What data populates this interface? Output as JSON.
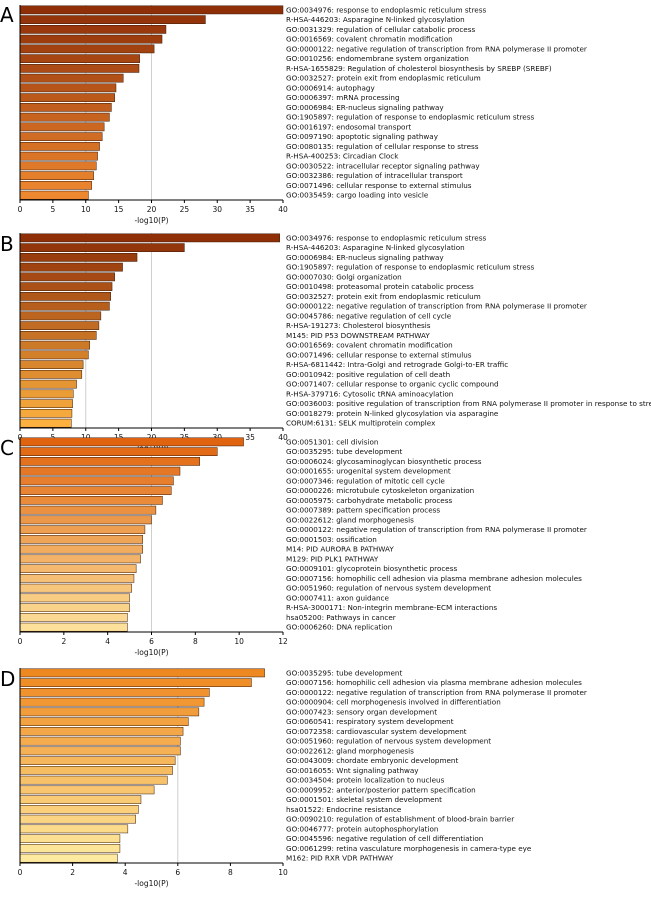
{
  "chart_data": [
    {
      "type": "bar",
      "panel_label": "A",
      "xlabel": "-log10(P)",
      "xlim": [
        0,
        40
      ],
      "xticks": [
        0,
        5,
        10,
        15,
        20,
        25,
        30,
        35,
        40
      ],
      "gridlines": [
        10,
        20
      ],
      "categories": [
        "GO:0034976: response to endoplasmic reticulum stress",
        "R-HSA-446203: Asparagine N-linked glycosylation",
        "GO:0031329: regulation of cellular catabolic process",
        "GO:0016569: covalent chromatin modification",
        "GO:0000122: negative regulation of transcription from RNA polymerase II promoter",
        "GO:0010256: endomembrane system organization",
        "R-HSA-1655829: Regulation of cholesterol biosynthesis by SREBP (SREBF)",
        "GO:0032527: protein exit from endoplasmic reticulum",
        "GO:0006914: autophagy",
        "GO:0006397: mRNA processing",
        "GO:0006984: ER-nucleus signaling pathway",
        "GO:1905897: regulation of response to endoplasmic reticulum stress",
        "GO:0016197: endosomal transport",
        "GO:0097190: apoptotic signaling pathway",
        "GO:0080135: regulation of cellular response to stress",
        "R-HSA-400253: Circadian Clock",
        "GO:0030522: intracellular receptor signaling pathway",
        "GO:0032386: regulation of intracellular transport",
        "GO:0071496: cellular response to external stimulus",
        "GO:0035459: cargo loading into vesicle"
      ],
      "values": [
        40.0,
        28.2,
        22.2,
        21.6,
        20.4,
        18.2,
        18.1,
        15.7,
        14.6,
        14.4,
        13.9,
        13.6,
        12.8,
        12.5,
        12.1,
        11.8,
        11.6,
        11.2,
        10.9,
        10.4
      ]
    },
    {
      "type": "bar",
      "panel_label": "B",
      "xlabel": "-log10(P)",
      "xlim": [
        0,
        40
      ],
      "xticks": [
        0,
        5,
        10,
        15,
        20,
        25,
        30,
        35,
        40
      ],
      "gridlines": [
        10,
        20
      ],
      "categories": [
        "GO:0034976: response to endoplasmic reticulum stress",
        "R-HSA-446203: Asparagine N-linked glycosylation",
        "GO:0006984: ER-nucleus signaling pathway",
        "GO:1905897: regulation of response to endoplasmic reticulum stress",
        "GO:0007030: Golgi organization",
        "GO:0010498: proteasomal protein catabolic process",
        "GO:0032527: protein exit from endoplasmic reticulum",
        "GO:0000122: negative regulation of transcription from RNA polymerase II promoter",
        "GO:0045786: negative regulation of cell cycle",
        "R-HSA-191273: Cholesterol biosynthesis",
        "M145: PID P53 DOWNSTREAM PATHWAY",
        "GO:0016569: covalent chromatin modification",
        "GO:0071496: cellular response to external stimulus",
        "R-HSA-6811442: Intra-Golgi and retrograde Golgi-to-ER traffic",
        "GO:0010942: positive regulation of cell death",
        "GO:0071407: cellular response to organic cyclic compound",
        "R-HSA-379716: Cytosolic tRNA aminoacylation",
        "GO:0036003: positive regulation of transcription from RNA polymerase II promoter in response to stress",
        "GO:0018279: protein N-linked glycosylation via asparagine",
        "CORUM:6131: SELK multiprotein complex"
      ],
      "values": [
        39.5,
        25.0,
        17.8,
        15.6,
        14.4,
        14.0,
        13.8,
        13.6,
        12.3,
        12.0,
        11.6,
        10.6,
        10.4,
        9.6,
        9.4,
        8.6,
        8.1,
        8.0,
        7.9,
        7.8
      ]
    },
    {
      "type": "bar",
      "panel_label": "C",
      "xlabel": "-log10(P)",
      "xlim": [
        0,
        12
      ],
      "xticks": [
        0,
        2,
        4,
        6,
        8,
        10,
        12
      ],
      "gridlines": [
        6
      ],
      "categories": [
        "GO:0051301: cell division",
        "GO:0035295: tube development",
        "GO:0006024: glycosaminoglycan biosynthetic process",
        "GO:0001655: urogenital system development",
        "GO:0007346: regulation of mitotic cell cycle",
        "GO:0000226: microtubule cytoskeleton organization",
        "GO:0005975: carbohydrate metabolic process",
        "GO:0007389: pattern specification process",
        "GO:0022612: gland morphogenesis",
        "GO:0000122: negative regulation of transcription from RNA polymerase II promoter",
        "GO:0001503: ossification",
        "M14: PID AURORA B PATHWAY",
        "M129: PID PLK1 PATHWAY",
        "GO:0009101: glycoprotein biosynthetic process",
        "GO:0007156: homophilic cell adhesion via plasma membrane adhesion molecules",
        "GO:0051960: regulation of nervous system development",
        "GO:0007411: axon guidance",
        "R-HSA-3000171: Non-integrin membrane-ECM interactions",
        "hsa05200: Pathways in cancer",
        "GO:0006260: DNA replication"
      ],
      "values": [
        10.2,
        9.0,
        8.2,
        7.3,
        7.0,
        6.9,
        6.5,
        6.2,
        6.0,
        5.7,
        5.6,
        5.6,
        5.5,
        5.3,
        5.2,
        5.1,
        5.0,
        5.0,
        4.9,
        4.9
      ]
    },
    {
      "type": "bar",
      "panel_label": "D",
      "xlabel": "-log10(P)",
      "xlim": [
        0,
        10
      ],
      "xticks": [
        0,
        2,
        4,
        6,
        8,
        10
      ],
      "gridlines": [
        6
      ],
      "categories": [
        "GO:0035295: tube development",
        "GO:0007156: homophilic cell adhesion via plasma membrane adhesion molecules",
        "GO:0000122: negative regulation of transcription from RNA polymerase II promoter",
        "GO:0000904: cell morphogenesis involved in differentiation",
        "GO:0007423: sensory organ development",
        "GO:0060541: respiratory system development",
        "GO:0072358: cardiovascular system development",
        "GO:0051960: regulation of nervous system development",
        "GO:0022612: gland morphogenesis",
        "GO:0043009: chordate embryonic development",
        "GO:0016055: Wnt signaling pathway",
        "GO:0034504: protein localization to nucleus",
        "GO:0009952: anterior/posterior pattern specification",
        "GO:0001501: skeletal system development",
        "hsa01522: Endocrine resistance",
        "GO:0090210: regulation of establishment of blood-brain barrier",
        "GO:0046777: protein autophosphorylation",
        "GO:0045596: negative regulation of cell differentiation",
        "GO:0061299: retina vasculature morphogenesis in camera-type eye",
        "M162: PID RXR VDR PATHWAY"
      ],
      "values": [
        9.3,
        8.8,
        7.2,
        7.0,
        6.8,
        6.4,
        6.2,
        6.1,
        6.1,
        5.9,
        5.8,
        5.6,
        5.1,
        4.6,
        4.5,
        4.4,
        4.1,
        3.8,
        3.8,
        3.7
      ]
    }
  ]
}
